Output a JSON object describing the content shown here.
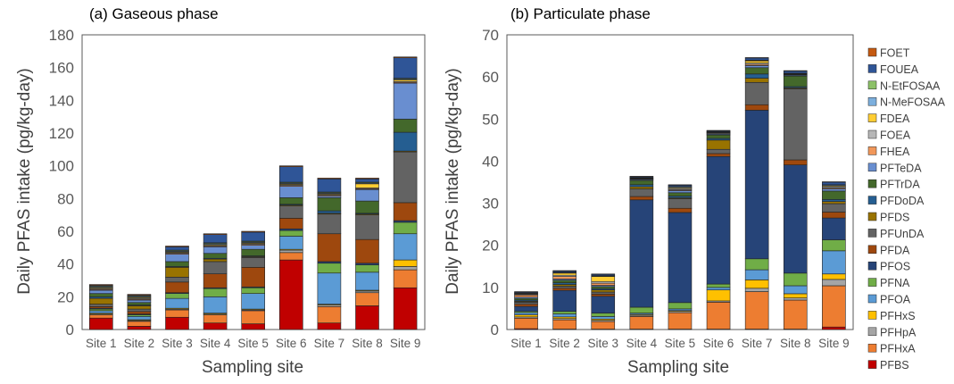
{
  "series_names": [
    "PFBS",
    "PFHxA",
    "PFHpA",
    "PFHxS",
    "PFOA",
    "PFNA",
    "PFOS",
    "PFDA",
    "PFUnDA",
    "PFDS",
    "PFDoDA",
    "PFTrDA",
    "PFTeDA",
    "FHEA",
    "FOEA",
    "FDEA",
    "N-MeFOSAA",
    "N-EtFOSAA",
    "FOUEA",
    "FOET"
  ],
  "colors": [
    "#c00000",
    "#ed7d31",
    "#a5a5a5",
    "#ffc000",
    "#5b9bd5",
    "#70ad47",
    "#264478",
    "#9e480e",
    "#636363",
    "#997300",
    "#255e91",
    "#43682b",
    "#698ed0",
    "#f1975a",
    "#b7b7b7",
    "#ffcd33",
    "#7cafdd",
    "#8cc168",
    "#2f5597",
    "#c55a11"
  ],
  "legend_order_top_to_bottom": [
    "FOET",
    "FOUEA",
    "N-EtFOSAA",
    "N-MeFOSAA",
    "FDEA",
    "FOEA",
    "FHEA",
    "PFTeDA",
    "PFTrDA",
    "PFDoDA",
    "PFDS",
    "PFUnDA",
    "PFDA",
    "PFOS",
    "PFNA",
    "PFOA",
    "PFHxS",
    "PFHpA",
    "PFHxA",
    "PFBS"
  ],
  "chart_data": [
    {
      "type": "bar",
      "stacked": true,
      "title": "(a) Gaseous phase",
      "xlabel": "Sampling site",
      "ylabel": "Daily PFAS intake (pg/kg-day)",
      "ylim": [
        0,
        180
      ],
      "yticks": [
        0,
        20,
        40,
        60,
        80,
        100,
        120,
        140,
        160,
        180
      ],
      "categories": [
        "Site 1",
        "Site 2",
        "Site 3",
        "Site 4",
        "Site 5",
        "Site 6",
        "Site 7",
        "Site 8",
        "Site 9"
      ],
      "series": [
        {
          "name": "PFBS",
          "values": [
            7,
            2,
            7.5,
            4,
            3.5,
            42.5,
            4,
            14.5,
            25.5
          ]
        },
        {
          "name": "PFHxA",
          "values": [
            2,
            3,
            4.5,
            5,
            8,
            4.5,
            10,
            8,
            11
          ]
        },
        {
          "name": "PFHpA",
          "values": [
            0.5,
            0.5,
            0.5,
            0.5,
            0.5,
            1.5,
            1,
            1,
            2
          ]
        },
        {
          "name": "PFHxS",
          "values": [
            0.5,
            0.5,
            0.5,
            0.5,
            0.5,
            0.5,
            0.5,
            0.5,
            4
          ]
        },
        {
          "name": "PFOA",
          "values": [
            1.5,
            2,
            6,
            10,
            9.5,
            8,
            19,
            11,
            16
          ]
        },
        {
          "name": "PFNA",
          "values": [
            1,
            1,
            3,
            5,
            3.5,
            3.5,
            6,
            4.5,
            7
          ]
        },
        {
          "name": "PFOS",
          "values": [
            0.5,
            0.5,
            0.5,
            0.5,
            0.5,
            1,
            1,
            1,
            1
          ]
        },
        {
          "name": "PFDA",
          "values": [
            1,
            1.5,
            6.5,
            8.5,
            12,
            6.5,
            17,
            14.5,
            11
          ]
        },
        {
          "name": "PFUnDA",
          "values": [
            1.5,
            1.5,
            3,
            7.5,
            6,
            7.5,
            12,
            15,
            31
          ]
        },
        {
          "name": "PFDS",
          "values": [
            3.5,
            2,
            6,
            1.5,
            0.5,
            0.5,
            0.5,
            0.5,
            0.5
          ]
        },
        {
          "name": "PFDoDA",
          "values": [
            1,
            0.5,
            0.5,
            0.5,
            0.5,
            0.5,
            1.5,
            0.5,
            11.5
          ]
        },
        {
          "name": "PFTrDA",
          "values": [
            2,
            1.5,
            3,
            3,
            4,
            4,
            8,
            7.5,
            8
          ]
        },
        {
          "name": "PFTeDA",
          "values": [
            2,
            1.5,
            4.5,
            4,
            2.5,
            7,
            1,
            7,
            22
          ]
        },
        {
          "name": "FHEA",
          "values": [
            0.5,
            0.5,
            0.5,
            0.5,
            0.5,
            0.5,
            0.5,
            0.5,
            0.5
          ]
        },
        {
          "name": "FOEA",
          "values": [
            0.5,
            0.5,
            0.5,
            0.5,
            0.5,
            0.5,
            0.5,
            0.5,
            0.5
          ]
        },
        {
          "name": "FDEA",
          "values": [
            0.5,
            0.5,
            0.5,
            0.5,
            0.5,
            0.5,
            0.5,
            2.5,
            1
          ]
        },
        {
          "name": "N-MeFOSAA",
          "values": [
            0.5,
            0.5,
            0.5,
            0.5,
            0.5,
            0.5,
            0.5,
            0.5,
            0.5
          ]
        },
        {
          "name": "N-EtFOSAA",
          "values": [
            0.5,
            0.5,
            0.5,
            0.5,
            0.5,
            0.5,
            0.5,
            0.5,
            0.5
          ]
        },
        {
          "name": "FOUEA",
          "values": [
            0.5,
            0.5,
            2,
            5,
            5.5,
            9.5,
            8,
            2,
            12.5
          ]
        },
        {
          "name": "FOET",
          "values": [
            0.5,
            0.5,
            0.5,
            0.5,
            0.5,
            0.5,
            0.5,
            0.5,
            0.5
          ]
        }
      ]
    },
    {
      "type": "bar",
      "stacked": true,
      "title": "(b) Particulate phase",
      "xlabel": "Sampling site",
      "ylabel": "Daily PFAS intake (pg/kg-day)",
      "ylim": [
        0,
        70
      ],
      "yticks": [
        0,
        10,
        20,
        30,
        40,
        50,
        60,
        70
      ],
      "categories": [
        "Site 1",
        "Site 2",
        "Site 3",
        "Site 4",
        "Site 5",
        "Site 6",
        "Site 7",
        "Site 8",
        "Site 9"
      ],
      "series": [
        {
          "name": "PFBS",
          "values": [
            0.2,
            0.1,
            0.1,
            0.1,
            0.1,
            0.1,
            0.1,
            0.1,
            0.6
          ]
        },
        {
          "name": "PFHxA",
          "values": [
            2.5,
            2.2,
            1.8,
            3,
            3.9,
            6.4,
            8.9,
            6.9,
            9.8
          ]
        },
        {
          "name": "PFHpA",
          "values": [
            0.3,
            0.3,
            0.3,
            0.3,
            0.3,
            0.3,
            0.8,
            0.5,
            1.5
          ]
        },
        {
          "name": "PFHxS",
          "values": [
            0.5,
            0.4,
            0.3,
            0.2,
            0.2,
            2.6,
            2,
            1,
            1.3
          ]
        },
        {
          "name": "PFOA",
          "values": [
            0.5,
            0.7,
            0.6,
            0.3,
            0.4,
            0.6,
            2.4,
            1.9,
            5.5
          ]
        },
        {
          "name": "PFNA",
          "values": [
            0.3,
            0.6,
            0.8,
            1.4,
            1.5,
            0.8,
            2.6,
            3,
            2.6
          ]
        },
        {
          "name": "PFOS",
          "values": [
            1.2,
            5,
            4,
            25.5,
            21.4,
            30.3,
            35.3,
            25.7,
            5.2
          ]
        },
        {
          "name": "PFDA",
          "values": [
            0.5,
            0.5,
            0.5,
            0.8,
            1,
            0.7,
            1.3,
            1.2,
            1.4
          ]
        },
        {
          "name": "PFUnDA",
          "values": [
            0.5,
            0.5,
            0.5,
            1.8,
            2.3,
            1,
            5.3,
            16.9,
            2
          ]
        },
        {
          "name": "PFDS",
          "values": [
            0.2,
            0.4,
            0.5,
            0.5,
            0.2,
            2.2,
            1,
            0.2,
            0.5
          ]
        },
        {
          "name": "PFDoDA",
          "values": [
            0.3,
            0.4,
            0.3,
            0.5,
            0.4,
            0.4,
            1,
            0.3,
            0.5
          ]
        },
        {
          "name": "PFTrDA",
          "values": [
            0.4,
            0.6,
            0.5,
            1,
            0.8,
            0.8,
            1.5,
            2.5,
            2
          ]
        },
        {
          "name": "PFTeDA",
          "values": [
            0.3,
            0.3,
            0.3,
            0.2,
            0.5,
            0.2,
            0.5,
            0.2,
            0.5
          ]
        },
        {
          "name": "FHEA",
          "values": [
            0.5,
            0.6,
            0.5,
            0.1,
            0.2,
            0.1,
            0.3,
            0.1,
            0.2
          ]
        },
        {
          "name": "FOEA",
          "values": [
            0.2,
            0.3,
            0.4,
            0.1,
            0.3,
            0.2,
            0.3,
            0.1,
            0.3
          ]
        },
        {
          "name": "FDEA",
          "values": [
            0.1,
            0.5,
            1.2,
            0.1,
            0.2,
            0.1,
            0.5,
            0.1,
            0.2
          ]
        },
        {
          "name": "N-MeFOSAA",
          "values": [
            0.1,
            0.1,
            0.1,
            0.1,
            0.2,
            0.1,
            0.1,
            0.1,
            0.2
          ]
        },
        {
          "name": "N-EtFOSAA",
          "values": [
            0.1,
            0.1,
            0.1,
            0.1,
            0.1,
            0.1,
            0.1,
            0.1,
            0.1
          ]
        },
        {
          "name": "FOUEA",
          "values": [
            0.2,
            0.3,
            0.3,
            0.2,
            0.3,
            0.2,
            0.5,
            0.5,
            0.6
          ]
        },
        {
          "name": "FOET",
          "values": [
            0.1,
            0.1,
            0.1,
            0.1,
            0.1,
            0.1,
            0.1,
            0.1,
            0.1
          ]
        }
      ]
    }
  ]
}
